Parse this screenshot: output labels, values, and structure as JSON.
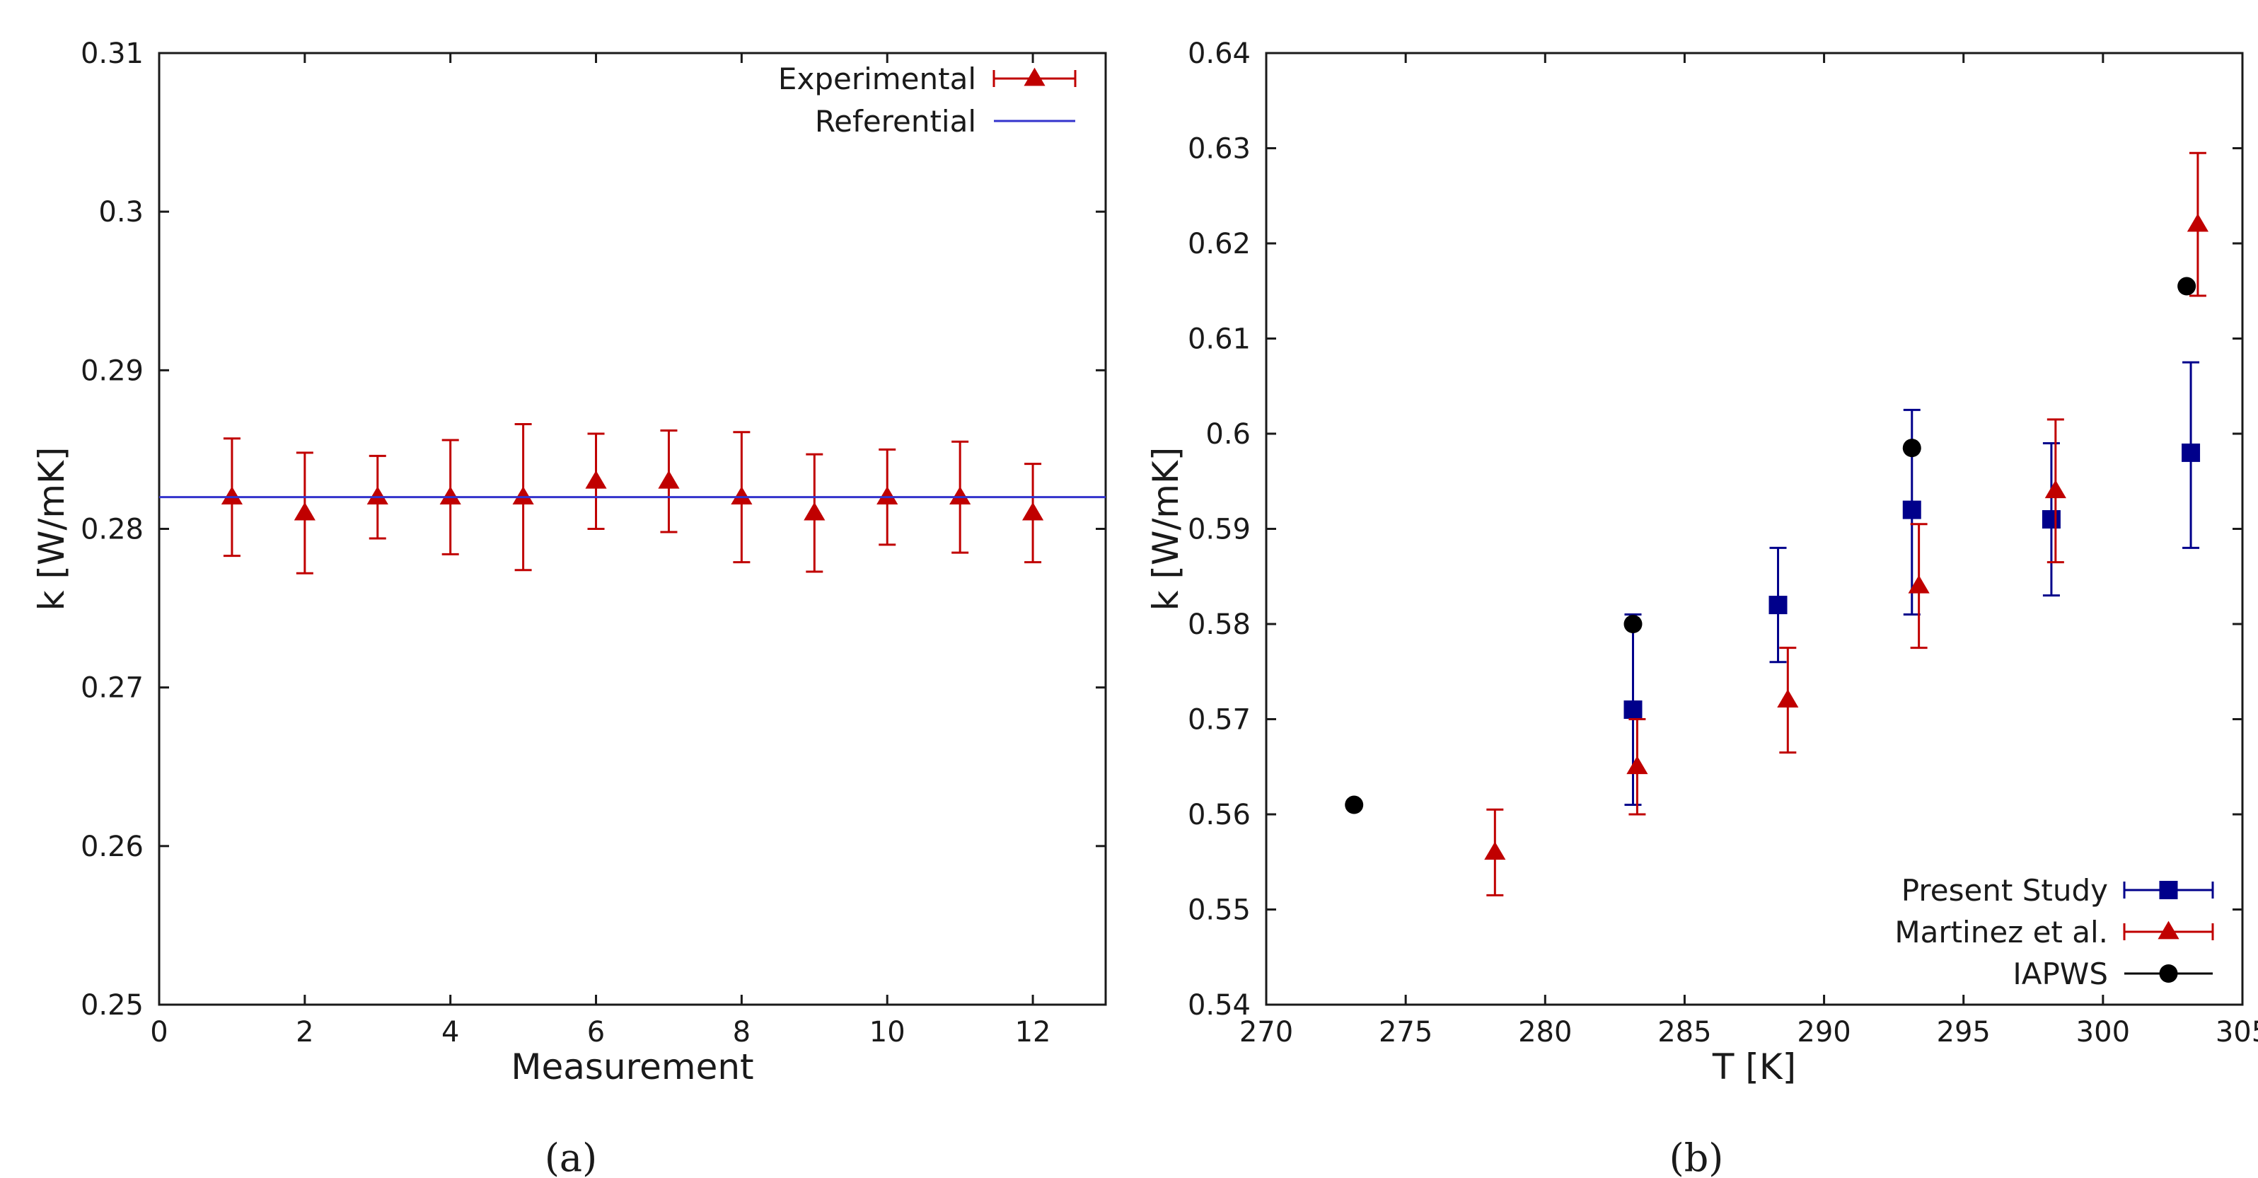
{
  "chart_data": [
    {
      "type": "scatter",
      "panel_label": "(a)",
      "xlabel": "Measurement",
      "ylabel": "k [W/mK]",
      "xlim": [
        0,
        13
      ],
      "ylim": [
        0.25,
        0.31
      ],
      "xticks": [
        0,
        2,
        4,
        6,
        8,
        10,
        12
      ],
      "xtick_labels": [
        "0",
        "2",
        "4",
        "6",
        "8",
        "10",
        "12"
      ],
      "yticks": [
        0.25,
        0.26,
        0.27,
        0.28,
        0.29,
        0.3,
        0.31
      ],
      "ytick_labels": [
        "0.25",
        "0.26",
        "0.27",
        "0.28",
        "0.29",
        "0.3",
        "0.31"
      ],
      "grid": false,
      "legend_position": "top-right",
      "series": [
        {
          "name": "Experimental",
          "marker": "triangle",
          "color": "#c00000",
          "errorbars": true,
          "x": [
            1,
            2,
            3,
            4,
            5,
            6,
            7,
            8,
            9,
            10,
            11,
            12
          ],
          "y": [
            0.282,
            0.281,
            0.282,
            0.282,
            0.282,
            0.283,
            0.283,
            0.282,
            0.281,
            0.282,
            0.282,
            0.281
          ],
          "y_low": [
            0.2783,
            0.2772,
            0.2794,
            0.2784,
            0.2774,
            0.28,
            0.2798,
            0.2779,
            0.2773,
            0.279,
            0.2785,
            0.2779
          ],
          "y_high": [
            0.2857,
            0.2848,
            0.2846,
            0.2856,
            0.2866,
            0.286,
            0.2862,
            0.2861,
            0.2847,
            0.285,
            0.2855,
            0.2841
          ]
        },
        {
          "name": "Referential",
          "marker": "line",
          "color": "#3333cc",
          "errorbars": false,
          "y_const": 0.282
        }
      ]
    },
    {
      "type": "scatter",
      "panel_label": "(b)",
      "xlabel": "T [K]",
      "ylabel": "k [W/mK]",
      "xlim": [
        270,
        305
      ],
      "ylim": [
        0.54,
        0.64
      ],
      "xticks": [
        270,
        275,
        280,
        285,
        290,
        295,
        300,
        305
      ],
      "xtick_labels": [
        "270",
        "275",
        "280",
        "285",
        "290",
        "295",
        "300",
        "305"
      ],
      "yticks": [
        0.54,
        0.55,
        0.56,
        0.57,
        0.58,
        0.59,
        0.6,
        0.61,
        0.62,
        0.63,
        0.64
      ],
      "ytick_labels": [
        "0.54",
        "0.55",
        "0.56",
        "0.57",
        "0.58",
        "0.59",
        "0.6",
        "0.61",
        "0.62",
        "0.63",
        "0.64"
      ],
      "grid": false,
      "legend_position": "bottom-right",
      "series": [
        {
          "name": "Present Study",
          "marker": "square",
          "color": "#00008b",
          "errorbars": true,
          "x": [
            283.15,
            288.35,
            293.15,
            298.15,
            303.15
          ],
          "y": [
            0.571,
            0.582,
            0.592,
            0.591,
            0.598
          ],
          "y_low": [
            0.561,
            0.576,
            0.581,
            0.583,
            0.588
          ],
          "y_high": [
            0.581,
            0.588,
            0.6025,
            0.599,
            0.6075
          ]
        },
        {
          "name": "Martinez et al.",
          "marker": "triangle",
          "color": "#c00000",
          "errorbars": true,
          "x": [
            278.2,
            283.3,
            288.7,
            293.4,
            298.3,
            303.4
          ],
          "y": [
            0.556,
            0.565,
            0.572,
            0.584,
            0.594,
            0.622
          ],
          "y_low": [
            0.5515,
            0.56,
            0.5665,
            0.5775,
            0.5865,
            0.6145
          ],
          "y_high": [
            0.5605,
            0.57,
            0.5775,
            0.5905,
            0.6015,
            0.6295
          ]
        },
        {
          "name": "IAPWS",
          "marker": "circle",
          "color": "#000000",
          "errorbars": false,
          "x": [
            273.15,
            283.15,
            293.15,
            303.0
          ],
          "y": [
            0.561,
            0.58,
            0.5985,
            0.6155
          ]
        }
      ]
    }
  ]
}
